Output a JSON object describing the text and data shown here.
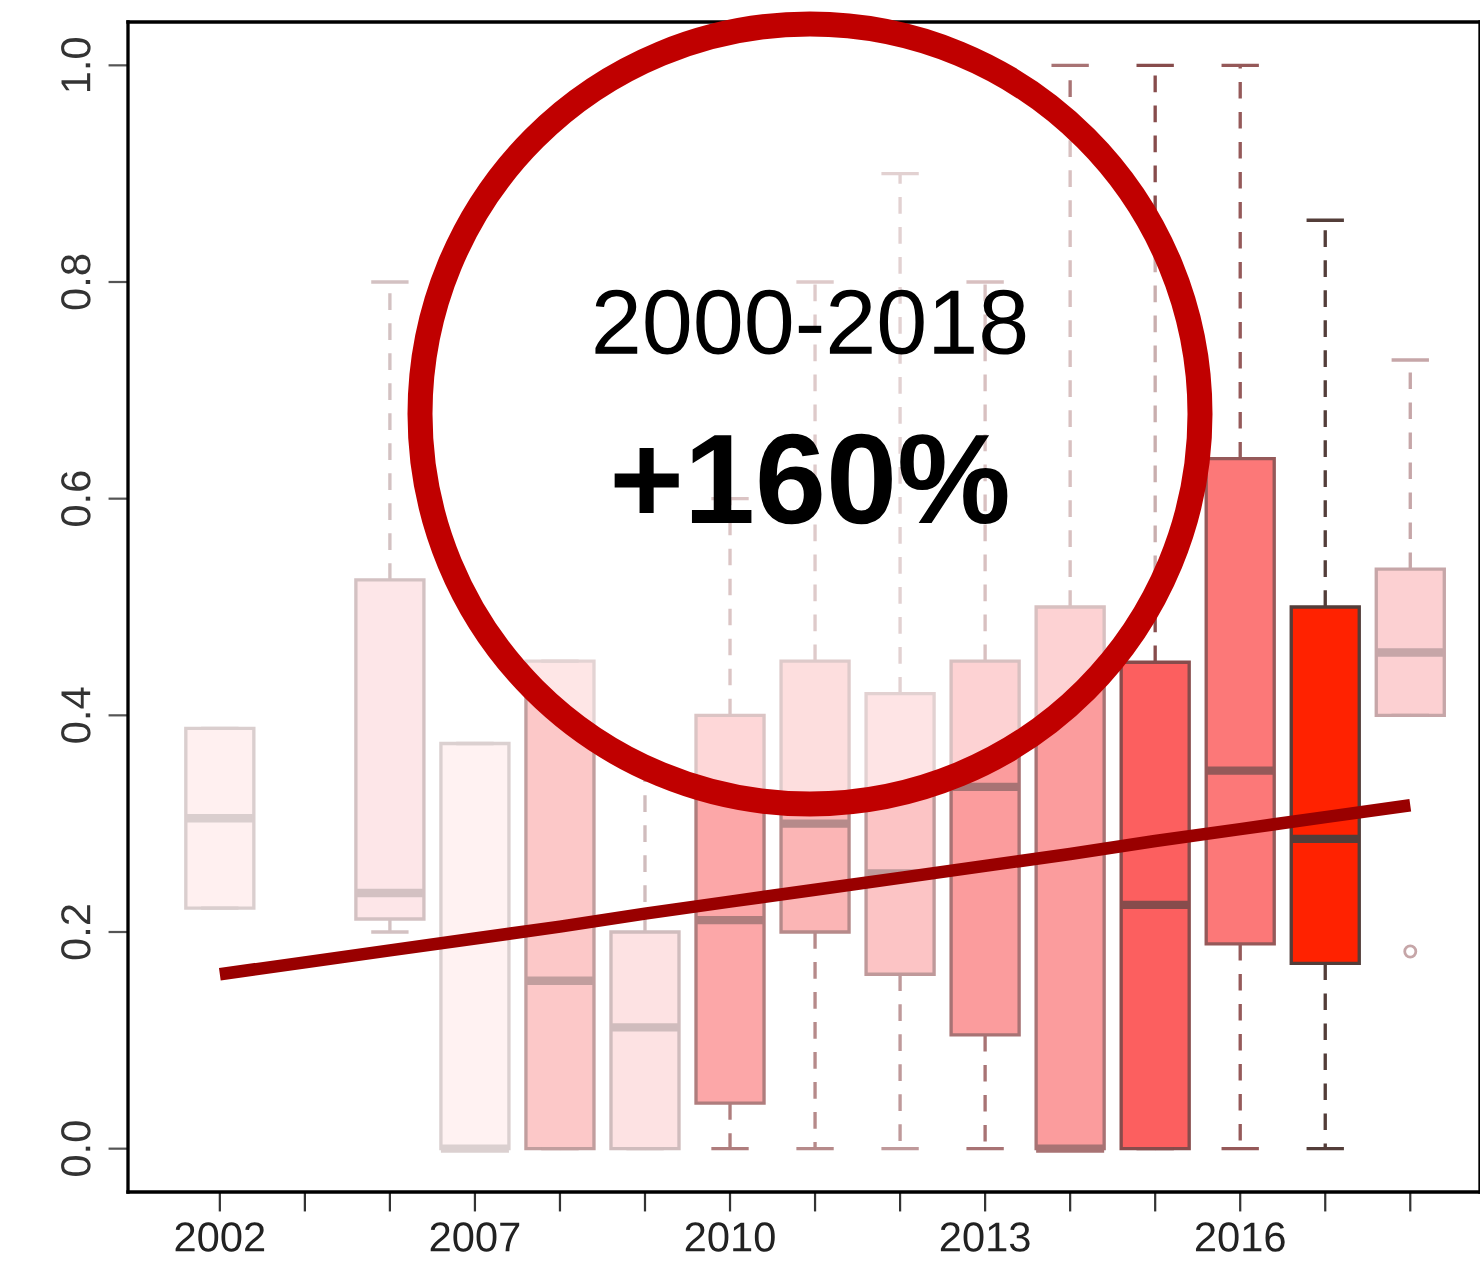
{
  "chart_data": {
    "type": "box",
    "categories": [
      "2002",
      null,
      null,
      "2007",
      null,
      null,
      "2010",
      null,
      null,
      "2013",
      null,
      null,
      "2016",
      null,
      null
    ],
    "boxes": [
      {
        "low": 0.222,
        "q1": 0.222,
        "median": 0.305,
        "q3": 0.388,
        "high": 0.388
      },
      null,
      {
        "low": 0.2,
        "q1": 0.212,
        "median": 0.236,
        "q3": 0.525,
        "high": 0.8
      },
      {
        "low": 0.0,
        "q1": 0.0,
        "median": 0.0,
        "q3": 0.374,
        "high": 0.374
      },
      {
        "low": 0.0,
        "q1": 0.0,
        "median": 0.155,
        "q3": 0.45,
        "high": 0.45
      },
      {
        "low": 0.0,
        "q1": 0.0,
        "median": 0.112,
        "q3": 0.2,
        "high": 0.35
      },
      {
        "low": 0.0,
        "q1": 0.042,
        "median": 0.211,
        "q3": 0.4,
        "high": 0.6
      },
      {
        "low": 0.0,
        "q1": 0.2,
        "median": 0.3,
        "q3": 0.45,
        "high": 0.8
      },
      {
        "low": 0.0,
        "q1": 0.161,
        "median": 0.254,
        "q3": 0.42,
        "high": 0.9
      },
      {
        "low": 0.0,
        "q1": 0.105,
        "median": 0.334,
        "q3": 0.45,
        "high": 0.8
      },
      {
        "low": 0.0,
        "q1": 0.0,
        "median": 0.0,
        "q3": 0.5,
        "high": 1.0
      },
      {
        "low": 0.0,
        "q1": 0.0,
        "median": 0.225,
        "q3": 0.449,
        "high": 1.0
      },
      {
        "low": 0.0,
        "q1": 0.189,
        "median": 0.349,
        "q3": 0.637,
        "high": 1.0
      },
      {
        "low": 0.0,
        "q1": 0.171,
        "median": 0.286,
        "q3": 0.5,
        "high": 0.857
      },
      {
        "low": 0.4,
        "q1": 0.4,
        "median": 0.458,
        "q3": 0.535,
        "high": 0.728,
        "outliers": [
          0.182
        ]
      }
    ],
    "colors": [
      "#fff0f0",
      null,
      "#fde6e8",
      "#fff2f2",
      "#fcc8c8",
      "#fde2e3",
      "#fca7a8",
      "#fbb5b5",
      "#fcc4c5",
      "#fb9c9d",
      "#fb9c9d",
      "#fc5f5f",
      "#fc7878",
      "#ff2200",
      "#fcd0d2"
    ],
    "series": [
      {
        "type": "line",
        "values": [
          0.161,
          0.172,
          0.183,
          0.194,
          0.205,
          0.217,
          0.228,
          0.239,
          0.25,
          0.261,
          0.272,
          0.284,
          0.295,
          0.306,
          0.317
        ],
        "color": "#990000"
      }
    ],
    "ylim": [
      -0.04,
      1.04
    ],
    "yticks": [
      {
        "value": 0.0,
        "label": "0.0"
      },
      0.2,
      0.4,
      0.6,
      0.8,
      {
        "value": 1.0,
        "label": "1.0"
      }
    ],
    "annotations": [
      "2000-2018",
      "+160%"
    ]
  }
}
